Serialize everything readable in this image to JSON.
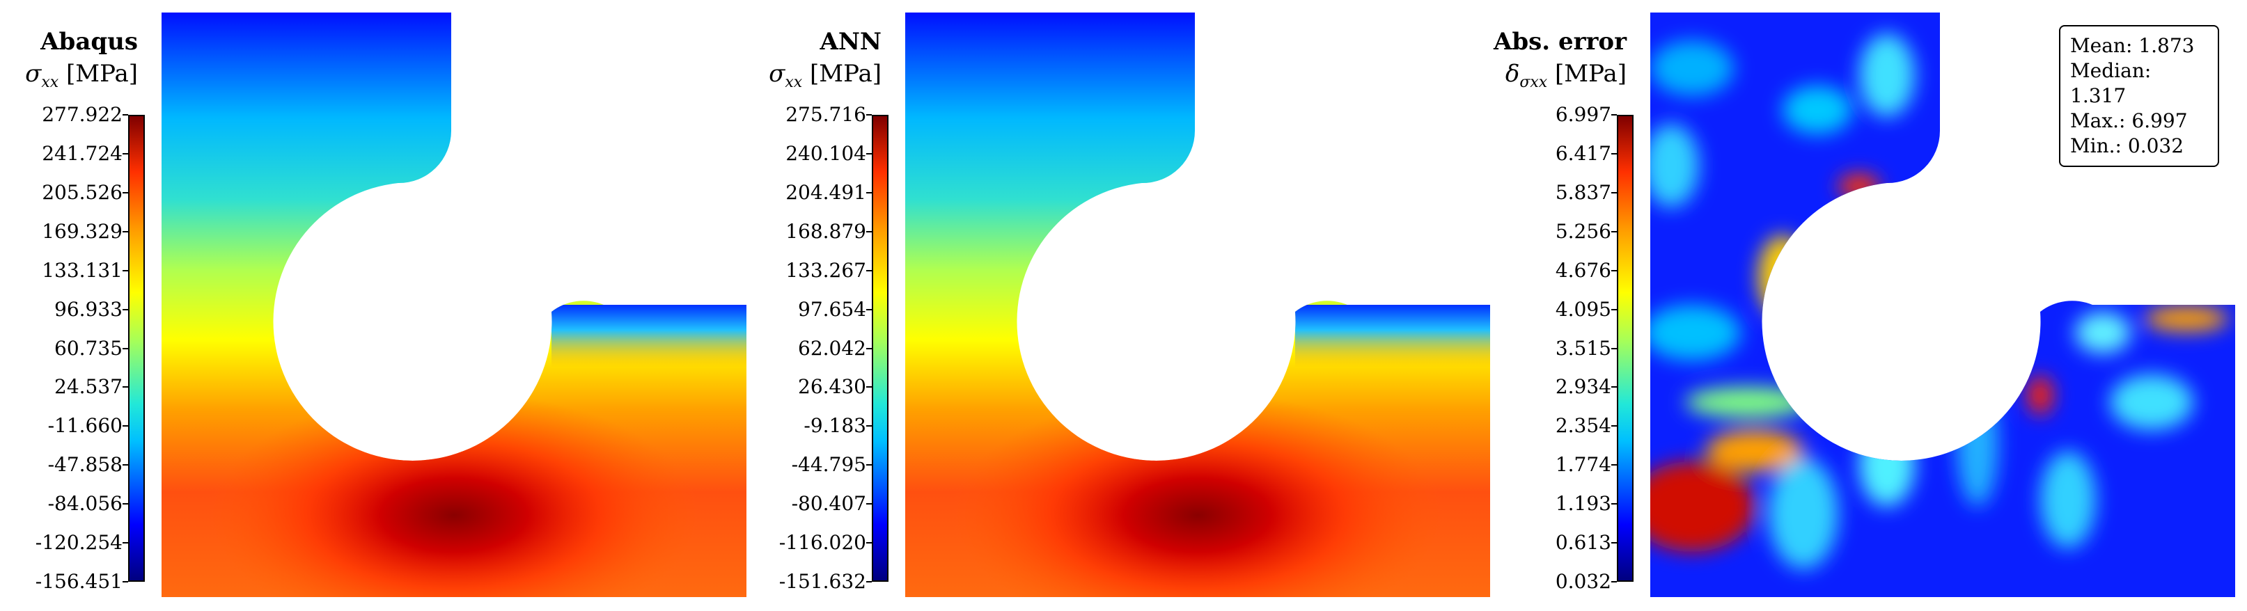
{
  "chart_data": [
    {
      "type": "heatmap",
      "title": "Abaqus",
      "colorbar_label": "σxx [MPa]",
      "colorbar_ticks": [
        "277.922",
        "241.724",
        "205.526",
        "169.329",
        "133.131",
        "96.933",
        "60.735",
        "24.537",
        "-11.660",
        "-47.858",
        "-84.056",
        "-120.254",
        "-156.451"
      ],
      "range": [
        -156.451,
        277.922
      ],
      "colormap": "jet"
    },
    {
      "type": "heatmap",
      "title": "ANN",
      "colorbar_label": "σxx [MPa]",
      "colorbar_ticks": [
        "275.716",
        "240.104",
        "204.491",
        "168.879",
        "133.267",
        "97.654",
        "62.042",
        "26.430",
        "-9.183",
        "-44.795",
        "-80.407",
        "-116.020",
        "-151.632"
      ],
      "range": [
        -151.632,
        275.716
      ],
      "colormap": "jet"
    },
    {
      "type": "heatmap",
      "title": "Abs. error",
      "colorbar_label": "δσxx [MPa]",
      "colorbar_ticks": [
        "6.997",
        "6.417",
        "5.837",
        "5.256",
        "4.676",
        "4.095",
        "3.515",
        "2.934",
        "2.354",
        "1.774",
        "1.193",
        "0.613",
        "0.032"
      ],
      "range": [
        0.032,
        6.997
      ],
      "colormap": "jet",
      "stats": {
        "mean": "Mean: 1.873",
        "median": "Median: 1.317",
        "max": "Max.: 6.997",
        "min": "Min.: 0.032"
      }
    }
  ],
  "labels": {
    "p1_title": "Abaqus",
    "p1_sym": "σ",
    "p1_sub": "xx",
    "p1_unit": "[MPa]",
    "p2_title": "ANN",
    "p2_sym": "σ",
    "p2_sub": "xx",
    "p2_unit": "[MPa]",
    "p3_title": "Abs. error",
    "p3_sym": "δ",
    "p3_sub": "σxx",
    "p3_unit": "[MPa]"
  }
}
